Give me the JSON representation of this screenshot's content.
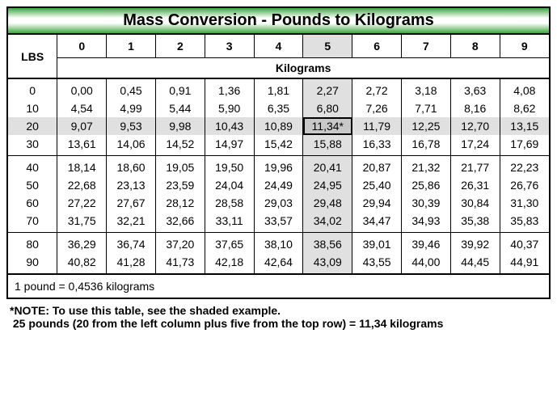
{
  "title": "Mass Conversion - Pounds to Kilograms",
  "lbs_header": "LBS",
  "kg_header": "Kilograms",
  "col_headers": [
    "0",
    "1",
    "2",
    "3",
    "4",
    "5",
    "6",
    "7",
    "8",
    "9"
  ],
  "shaded_col_index": 5,
  "shaded_row_index": 2,
  "highlight_cell": {
    "row": 2,
    "col": 5,
    "value": "11,34*"
  },
  "groups": [
    [
      {
        "label": "0",
        "cells": [
          "0,00",
          "0,45",
          "0,91",
          "1,36",
          "1,81",
          "2,27",
          "2,72",
          "3,18",
          "3,63",
          "4,08"
        ]
      },
      {
        "label": "10",
        "cells": [
          "4,54",
          "4,99",
          "5,44",
          "5,90",
          "6,35",
          "6,80",
          "7,26",
          "7,71",
          "8,16",
          "8,62"
        ]
      },
      {
        "label": "20",
        "cells": [
          "9,07",
          "9,53",
          "9,98",
          "10,43",
          "10,89",
          "11,34*",
          "11,79",
          "12,25",
          "12,70",
          "13,15"
        ]
      },
      {
        "label": "30",
        "cells": [
          "13,61",
          "14,06",
          "14,52",
          "14,97",
          "15,42",
          "15,88",
          "16,33",
          "16,78",
          "17,24",
          "17,69"
        ]
      }
    ],
    [
      {
        "label": "40",
        "cells": [
          "18,14",
          "18,60",
          "19,05",
          "19,50",
          "19,96",
          "20,41",
          "20,87",
          "21,32",
          "21,77",
          "22,23"
        ]
      },
      {
        "label": "50",
        "cells": [
          "22,68",
          "23,13",
          "23,59",
          "24,04",
          "24,49",
          "24,95",
          "25,40",
          "25,86",
          "26,31",
          "26,76"
        ]
      },
      {
        "label": "60",
        "cells": [
          "27,22",
          "27,67",
          "28,12",
          "28,58",
          "29,03",
          "29,48",
          "29,94",
          "30,39",
          "30,84",
          "31,30"
        ]
      },
      {
        "label": "70",
        "cells": [
          "31,75",
          "32,21",
          "32,66",
          "33,11",
          "33,57",
          "34,02",
          "34,47",
          "34,93",
          "35,38",
          "35,83"
        ]
      }
    ],
    [
      {
        "label": "80",
        "cells": [
          "36,29",
          "36,74",
          "37,20",
          "37,65",
          "38,10",
          "38,56",
          "39,01",
          "39,46",
          "39,92",
          "40,37"
        ]
      },
      {
        "label": "90",
        "cells": [
          "40,82",
          "41,28",
          "41,73",
          "42,18",
          "42,64",
          "43,09",
          "43,55",
          "44,00",
          "44,45",
          "44,91"
        ]
      }
    ]
  ],
  "footer": "1 pound = 0,4536 kilograms",
  "note_line1": "*NOTE: To use this table, see the shaded example.",
  "note_line2": " 25 pounds (20 from the left column plus five from the top row) = 11,34 kilograms",
  "colors": {
    "title_gradient_mid": "#ffffff",
    "title_gradient_edge": "#3fa63f",
    "border": "#000000",
    "shade": "#e0e0e0",
    "highlight": "#c8c8c8"
  }
}
